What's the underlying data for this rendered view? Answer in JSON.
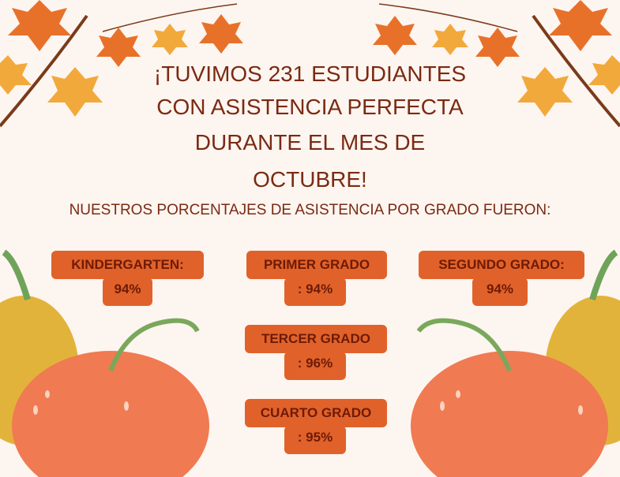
{
  "title_lines": [
    "¡TUVIMOS 231 ESTUDIANTES",
    "CON ASISTENCIA PERFECTA",
    "DURANTE EL MES DE",
    "OCTUBRE!"
  ],
  "subtitle": "NUESTROS PORCENTAJES DE ASISTENCIA POR GRADO FUERON:",
  "grades": [
    {
      "label": "KINDERGARTEN:",
      "value": "94%"
    },
    {
      "label": "PRIMER GRADO",
      "value": ": 94%"
    },
    {
      "label": "SEGUNDO GRADO:",
      "value": "94%"
    },
    {
      "label": "TERCER GRADO",
      "value": ": 96%"
    },
    {
      "label": "CUARTO GRADO",
      "value": ": 95%"
    }
  ]
}
